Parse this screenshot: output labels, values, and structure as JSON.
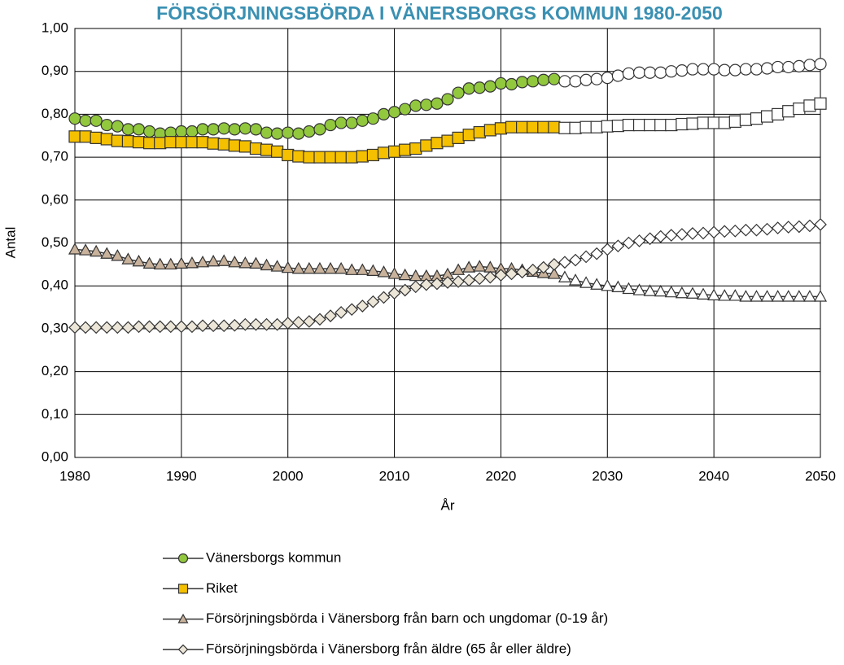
{
  "chart_data": {
    "type": "line",
    "title": "FÖRSÖRJNINGSBÖRDA I VÄNERSBORGS KOMMUN 1980-2050",
    "x_label": "År",
    "y_label": "Antal",
    "x": [
      1980,
      1981,
      1982,
      1983,
      1984,
      1985,
      1986,
      1987,
      1988,
      1989,
      1990,
      1991,
      1992,
      1993,
      1994,
      1995,
      1996,
      1997,
      1998,
      1999,
      2000,
      2001,
      2002,
      2003,
      2004,
      2005,
      2006,
      2007,
      2008,
      2009,
      2010,
      2011,
      2012,
      2013,
      2014,
      2015,
      2016,
      2017,
      2018,
      2019,
      2020,
      2021,
      2022,
      2023,
      2024,
      2025,
      2026,
      2027,
      2028,
      2029,
      2030,
      2031,
      2032,
      2033,
      2034,
      2035,
      2036,
      2037,
      2038,
      2039,
      2040,
      2041,
      2042,
      2043,
      2044,
      2045,
      2046,
      2047,
      2048,
      2049,
      2050
    ],
    "xlim": [
      1980,
      2050
    ],
    "xticks": [
      1980,
      1990,
      2000,
      2010,
      2020,
      2030,
      2040,
      2050
    ],
    "ylim": [
      0,
      1
    ],
    "yticks": [
      {
        "value": 0,
        "label": "0,00"
      },
      {
        "value": 0.1,
        "label": "0,10"
      },
      {
        "value": 0.2,
        "label": "0,20"
      },
      {
        "value": 0.3,
        "label": "0,30"
      },
      {
        "value": 0.4,
        "label": "0,40"
      },
      {
        "value": 0.5,
        "label": "0,50"
      },
      {
        "value": 0.6,
        "label": "0,60"
      },
      {
        "value": 0.7,
        "label": "0,70"
      },
      {
        "value": 0.8,
        "label": "0,80"
      },
      {
        "value": 0.9,
        "label": "0,90"
      },
      {
        "value": 1,
        "label": "1,00"
      }
    ],
    "grid": true,
    "open_markers_from": 2026,
    "legend": "bottom",
    "series": [
      {
        "name": "Vänersborgs kommun",
        "color": "#92c83e",
        "marker": "circle",
        "values": [
          0.79,
          0.785,
          0.785,
          0.775,
          0.772,
          0.765,
          0.765,
          0.76,
          0.755,
          0.757,
          0.76,
          0.76,
          0.765,
          0.765,
          0.767,
          0.765,
          0.767,
          0.765,
          0.757,
          0.755,
          0.757,
          0.755,
          0.76,
          0.765,
          0.775,
          0.78,
          0.78,
          0.785,
          0.79,
          0.8,
          0.805,
          0.812,
          0.82,
          0.822,
          0.825,
          0.835,
          0.85,
          0.86,
          0.862,
          0.865,
          0.872,
          0.87,
          0.875,
          0.877,
          0.88,
          0.882,
          0.877,
          0.877,
          0.88,
          0.882,
          0.885,
          0.89,
          0.895,
          0.897,
          0.897,
          0.897,
          0.9,
          0.902,
          0.905,
          0.905,
          0.905,
          0.903,
          0.903,
          0.905,
          0.905,
          0.907,
          0.91,
          0.91,
          0.912,
          0.915,
          0.917
        ]
      },
      {
        "name": "Riket",
        "color": "#f5c000",
        "marker": "square",
        "values": [
          0.748,
          0.748,
          0.745,
          0.742,
          0.738,
          0.737,
          0.735,
          0.733,
          0.733,
          0.735,
          0.735,
          0.735,
          0.735,
          0.732,
          0.73,
          0.727,
          0.725,
          0.72,
          0.717,
          0.713,
          0.705,
          0.702,
          0.7,
          0.7,
          0.7,
          0.7,
          0.7,
          0.702,
          0.705,
          0.71,
          0.713,
          0.717,
          0.72,
          0.727,
          0.733,
          0.738,
          0.745,
          0.752,
          0.758,
          0.763,
          0.767,
          0.77,
          0.77,
          0.77,
          0.77,
          0.77,
          0.768,
          0.768,
          0.77,
          0.77,
          0.772,
          0.773,
          0.775,
          0.775,
          0.775,
          0.775,
          0.775,
          0.777,
          0.778,
          0.78,
          0.78,
          0.78,
          0.783,
          0.787,
          0.79,
          0.795,
          0.8,
          0.807,
          0.813,
          0.82,
          0.825
        ]
      },
      {
        "name": "Försörjningsbörda i Vänersborg från barn och ungdomar (0-19 år)",
        "color": "#c9b29b",
        "marker": "triangle",
        "values": [
          0.485,
          0.483,
          0.48,
          0.475,
          0.47,
          0.462,
          0.457,
          0.452,
          0.45,
          0.45,
          0.452,
          0.453,
          0.455,
          0.457,
          0.458,
          0.455,
          0.453,
          0.452,
          0.448,
          0.445,
          0.442,
          0.44,
          0.44,
          0.44,
          0.44,
          0.44,
          0.437,
          0.437,
          0.435,
          0.432,
          0.428,
          0.425,
          0.423,
          0.423,
          0.423,
          0.427,
          0.437,
          0.443,
          0.445,
          0.443,
          0.44,
          0.44,
          0.437,
          0.433,
          0.43,
          0.428,
          0.42,
          0.413,
          0.407,
          0.403,
          0.4,
          0.397,
          0.393,
          0.39,
          0.388,
          0.387,
          0.385,
          0.383,
          0.382,
          0.38,
          0.378,
          0.377,
          0.377,
          0.375,
          0.375,
          0.375,
          0.375,
          0.375,
          0.375,
          0.375,
          0.375
        ]
      },
      {
        "name": "Försörjningsbörda i Vänersborg från äldre (65 år eller äldre)",
        "color": "#ece6d8",
        "marker": "diamond",
        "values": [
          0.303,
          0.303,
          0.303,
          0.303,
          0.303,
          0.303,
          0.305,
          0.305,
          0.305,
          0.305,
          0.305,
          0.305,
          0.307,
          0.307,
          0.307,
          0.308,
          0.31,
          0.31,
          0.31,
          0.31,
          0.313,
          0.315,
          0.317,
          0.322,
          0.33,
          0.338,
          0.345,
          0.353,
          0.363,
          0.373,
          0.383,
          0.39,
          0.398,
          0.403,
          0.405,
          0.408,
          0.41,
          0.413,
          0.417,
          0.42,
          0.425,
          0.428,
          0.432,
          0.437,
          0.443,
          0.45,
          0.455,
          0.46,
          0.468,
          0.475,
          0.485,
          0.493,
          0.5,
          0.505,
          0.51,
          0.515,
          0.518,
          0.52,
          0.522,
          0.523,
          0.525,
          0.527,
          0.528,
          0.53,
          0.53,
          0.532,
          0.535,
          0.537,
          0.538,
          0.54,
          0.543
        ]
      }
    ]
  }
}
